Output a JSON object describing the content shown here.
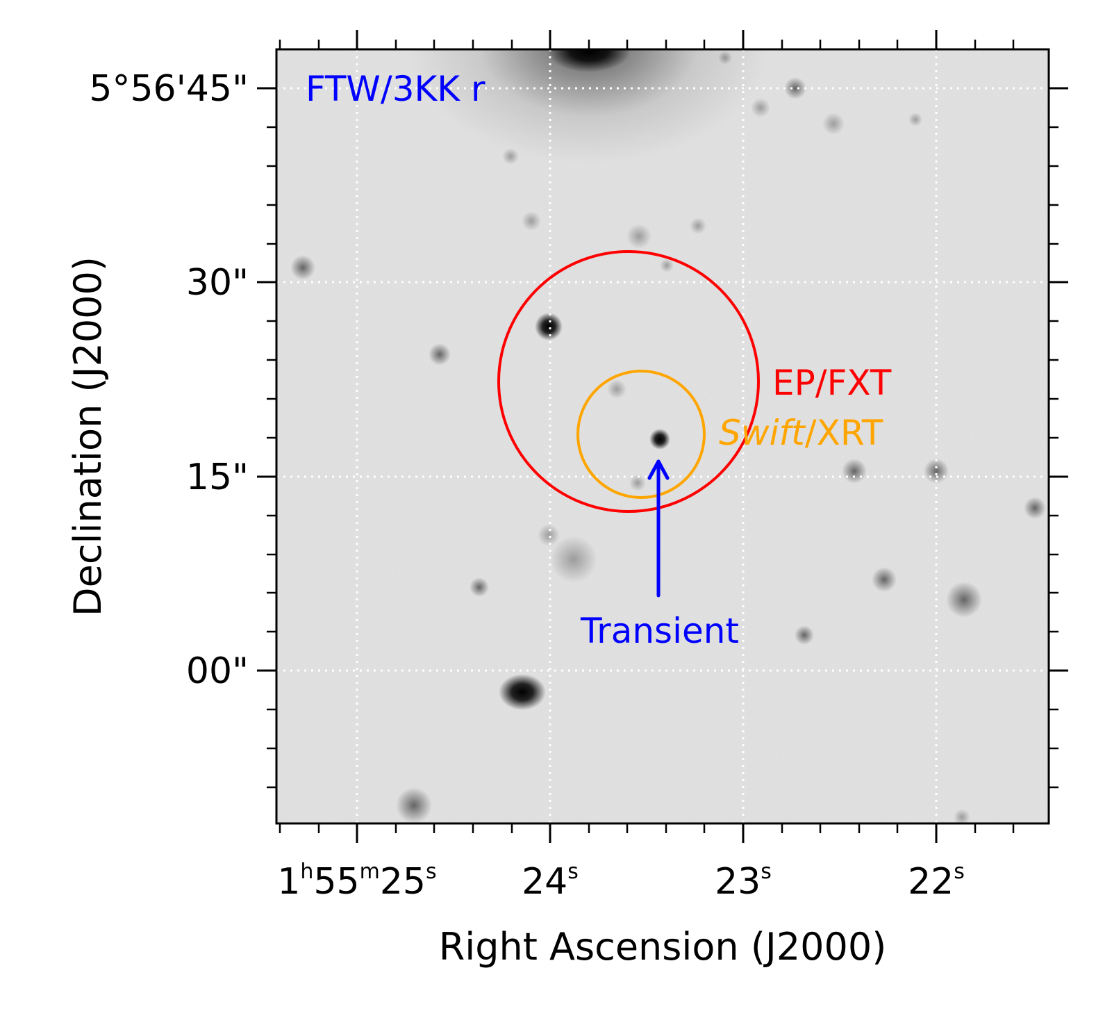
{
  "panel_label": "FTW/3KK r",
  "xlabel": "Right Ascension (J2000)",
  "ylabel": "Declination (J2000)",
  "ra_ticks": [
    {
      "h": "1",
      "m": "55",
      "s": "25"
    },
    {
      "s": "24"
    },
    {
      "s": "23"
    },
    {
      "s": "22"
    }
  ],
  "ra_units": {
    "h": "h",
    "m": "m",
    "s": "s"
  },
  "dec_ticks": [
    "5°56'45\"",
    "30\"",
    "15\"",
    "00\""
  ],
  "error_regions": {
    "ep_fxt": {
      "label": "EP/FXT",
      "color": "#ff0000"
    },
    "swift_xrt": {
      "label_italic": "Swift",
      "label_rest": "/XRT",
      "color": "#ffa500"
    }
  },
  "transient": {
    "label": "Transient",
    "color": "#0000ff"
  }
}
